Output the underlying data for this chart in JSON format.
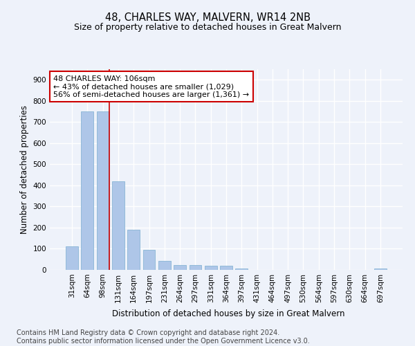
{
  "title": "48, CHARLES WAY, MALVERN, WR14 2NB",
  "subtitle": "Size of property relative to detached houses in Great Malvern",
  "xlabel": "Distribution of detached houses by size in Great Malvern",
  "ylabel": "Number of detached properties",
  "footer_line1": "Contains HM Land Registry data © Crown copyright and database right 2024.",
  "footer_line2": "Contains public sector information licensed under the Open Government Licence v3.0.",
  "bar_labels": [
    "31sqm",
    "64sqm",
    "98sqm",
    "131sqm",
    "164sqm",
    "197sqm",
    "231sqm",
    "264sqm",
    "297sqm",
    "331sqm",
    "364sqm",
    "397sqm",
    "431sqm",
    "464sqm",
    "497sqm",
    "530sqm",
    "564sqm",
    "597sqm",
    "630sqm",
    "664sqm",
    "697sqm"
  ],
  "bar_values": [
    110,
    750,
    750,
    420,
    190,
    95,
    43,
    22,
    22,
    20,
    20,
    8,
    0,
    0,
    0,
    0,
    0,
    0,
    0,
    0,
    8
  ],
  "bar_color": "#aec6e8",
  "bar_edge_color": "#7aaed0",
  "property_bar_index": 2,
  "vline_color": "#cc0000",
  "annotation_line1": "48 CHARLES WAY: 106sqm",
  "annotation_line2": "← 43% of detached houses are smaller (1,029)",
  "annotation_line3": "56% of semi-detached houses are larger (1,361) →",
  "annotation_box_color": "#ffffff",
  "annotation_box_edge": "#cc0000",
  "ylim": [
    0,
    950
  ],
  "yticks": [
    0,
    100,
    200,
    300,
    400,
    500,
    600,
    700,
    800,
    900
  ],
  "background_color": "#eef2fa",
  "grid_color": "#ffffff",
  "title_fontsize": 10.5,
  "subtitle_fontsize": 9,
  "axis_label_fontsize": 8.5,
  "tick_fontsize": 7.5,
  "annotation_fontsize": 8,
  "footer_fontsize": 7
}
